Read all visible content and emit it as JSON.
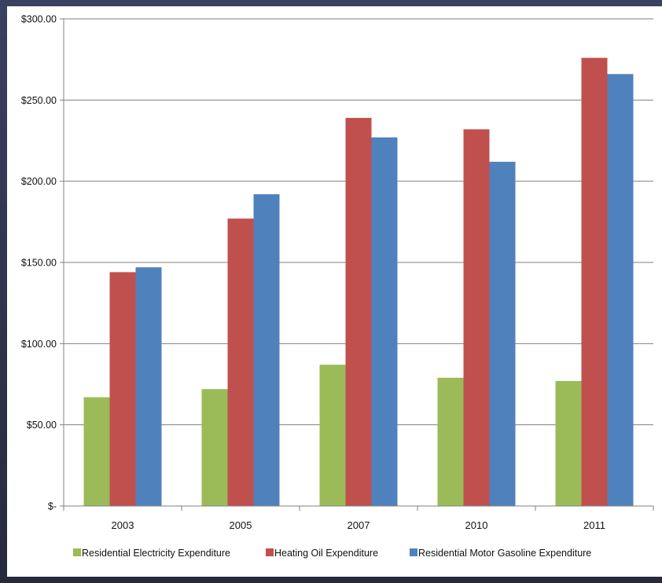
{
  "chart_data": {
    "type": "bar",
    "categories": [
      "2003",
      "2005",
      "2007",
      "2010",
      "2011"
    ],
    "series": [
      {
        "name": "Residential Electricity Expenditure",
        "color": "#9bbb59",
        "values": [
          67,
          72,
          87,
          79,
          77
        ]
      },
      {
        "name": "Heating Oil Expenditure",
        "color": "#c0504d",
        "values": [
          144,
          177,
          239,
          232,
          276
        ]
      },
      {
        "name": "Residential Motor Gasoline Expenditure",
        "color": "#4f81bd",
        "values": [
          147,
          192,
          227,
          212,
          266
        ]
      }
    ],
    "ylim": [
      0,
      300
    ],
    "y_ticks": [
      {
        "value": 300,
        "label": "$300.00"
      },
      {
        "value": 250,
        "label": "$250.00"
      },
      {
        "value": 200,
        "label": "$200.00"
      },
      {
        "value": 150,
        "label": "$150.00"
      },
      {
        "value": 100,
        "label": "$100.00"
      },
      {
        "value": 50,
        "label": "$50.00"
      },
      {
        "value": 0,
        "label": "$-"
      }
    ],
    "title": "",
    "xlabel": "",
    "ylabel": "",
    "grid": "horizontal",
    "legend_position": "bottom"
  }
}
